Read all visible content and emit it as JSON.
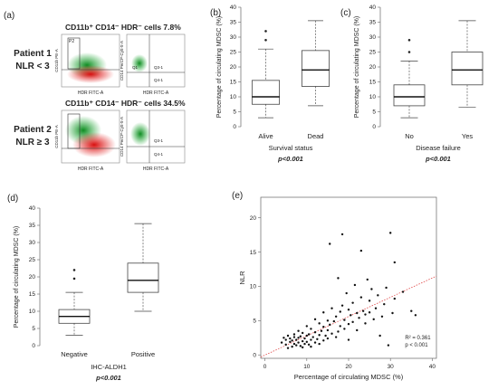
{
  "panel_labels": {
    "a": "(a)",
    "b": "(b)",
    "c": "(c)",
    "d": "(d)",
    "e": "(e)"
  },
  "flow_panel": {
    "patient1": {
      "line1": "Patient 1",
      "line2": "NLR < 3"
    },
    "patient2": {
      "line1": "Patient 2",
      "line2": "NLR ≥ 3"
    },
    "header1": "CD11b⁺ CD14⁻ HDR⁻ cells 7.8%",
    "header2": "CD11b⁺ CD14⁻ HDR⁻ cells 34.5%",
    "gate_p2": "P2",
    "gate_q1": "Q1",
    "gate_q3_1": "Q3-1",
    "gate_q4_1": "Q4-1",
    "x_label_left": "HDR FITC-A",
    "x_label_right": "HDR FITC-A",
    "y_label_left": "CD11b PE-A",
    "y_label_right": "CD14 PerCP-Cy5-5-A",
    "colors": {
      "green": "#19a82f",
      "red": "#e31b1b"
    }
  },
  "chart_data": [
    {
      "id": "b",
      "type": "box",
      "categories": [
        "Alive",
        "Dead"
      ],
      "boxes": [
        {
          "min": 3,
          "q1": 7.5,
          "median": 10,
          "q3": 15.5,
          "max": 26,
          "outliers": [
            29,
            32
          ]
        },
        {
          "min": 7,
          "q1": 13.5,
          "median": 19,
          "q3": 25.5,
          "max": 35.5,
          "outliers": []
        }
      ],
      "ylabel": "Percentage of circulating MDSC (%)",
      "xlabel": "Survival status",
      "pvalue": "p<0.001",
      "ylim": [
        0,
        40
      ],
      "yticks": [
        0,
        5,
        10,
        15,
        20,
        25,
        30,
        35,
        40
      ]
    },
    {
      "id": "c",
      "type": "box",
      "categories": [
        "No",
        "Yes"
      ],
      "boxes": [
        {
          "min": 3,
          "q1": 7,
          "median": 10,
          "q3": 14,
          "max": 22,
          "outliers": [
            25,
            29
          ]
        },
        {
          "min": 6.5,
          "q1": 14,
          "median": 19,
          "q3": 25,
          "max": 35.5,
          "outliers": []
        }
      ],
      "ylabel": "Percentage of circulating MDSC (%)",
      "xlabel": "Disease failure",
      "pvalue": "p<0.001",
      "ylim": [
        0,
        40
      ],
      "yticks": [
        0,
        5,
        10,
        15,
        20,
        25,
        30,
        35,
        40
      ]
    },
    {
      "id": "d",
      "type": "box",
      "categories": [
        "Negative",
        "Positive"
      ],
      "boxes": [
        {
          "min": 3,
          "q1": 6.5,
          "median": 8.5,
          "q3": 10.5,
          "max": 15.5,
          "outliers": [
            19.5,
            22
          ]
        },
        {
          "min": 10,
          "q1": 15.5,
          "median": 19,
          "q3": 24,
          "max": 35.5,
          "outliers": []
        }
      ],
      "ylabel": "Percentage of circulating MDSC (%)",
      "xlabel": "IHC-ALDH1",
      "pvalue": "p<0.001",
      "ylim": [
        0,
        40
      ],
      "yticks": [
        0,
        5,
        10,
        15,
        20,
        25,
        30,
        35,
        40
      ]
    },
    {
      "id": "e",
      "type": "scatter",
      "xlabel": "Percentage of circulating MDSC (%)",
      "ylabel": "NLR",
      "xlim": [
        -1,
        41
      ],
      "ylim": [
        -0.5,
        23
      ],
      "xticks": [
        0,
        10,
        20,
        30,
        40
      ],
      "yticks": [
        0,
        5,
        10,
        15,
        20
      ],
      "annotation_r2": "R² = 0.361",
      "annotation_p": "p < 0.001",
      "fit_line": [
        [
          -1,
          -0.3
        ],
        [
          41,
          11.5
        ]
      ],
      "grid": false,
      "points": [
        [
          4,
          1.8
        ],
        [
          4.5,
          2.5
        ],
        [
          5,
          1.5
        ],
        [
          5,
          2.2
        ],
        [
          5.5,
          1
        ],
        [
          5.5,
          2.8
        ],
        [
          6,
          1.9
        ],
        [
          6,
          2.4
        ],
        [
          6.5,
          1.2
        ],
        [
          6.5,
          2.1
        ],
        [
          7,
          1.6
        ],
        [
          7,
          2.6
        ],
        [
          7,
          3
        ],
        [
          7.5,
          1.4
        ],
        [
          7.5,
          2.2
        ],
        [
          8,
          1.8
        ],
        [
          8,
          2.5
        ],
        [
          8,
          3.5
        ],
        [
          8.5,
          1.3
        ],
        [
          8.5,
          2.7
        ],
        [
          9,
          2
        ],
        [
          9,
          1.1
        ],
        [
          9,
          3.2
        ],
        [
          9.5,
          2.4
        ],
        [
          9.5,
          1.6
        ],
        [
          10,
          1.9
        ],
        [
          10,
          2.8
        ],
        [
          10,
          4.2
        ],
        [
          10.5,
          1.5
        ],
        [
          10.5,
          3
        ],
        [
          11,
          2.2
        ],
        [
          11,
          3.8
        ],
        [
          11,
          1.2
        ],
        [
          11.5,
          2.6
        ],
        [
          12,
          1.8
        ],
        [
          12,
          3.3
        ],
        [
          12,
          5.2
        ],
        [
          12.5,
          2.3
        ],
        [
          13,
          2.9
        ],
        [
          13,
          1.6
        ],
        [
          13,
          4.6
        ],
        [
          13.5,
          3.5
        ],
        [
          14,
          2.1
        ],
        [
          14,
          4.1
        ],
        [
          14,
          6.2
        ],
        [
          14.5,
          2.8
        ],
        [
          15,
          3.6
        ],
        [
          15,
          5
        ],
        [
          15,
          2.4
        ],
        [
          15.5,
          16.2
        ],
        [
          15.5,
          4.4
        ],
        [
          16,
          3.1
        ],
        [
          16,
          6.8
        ],
        [
          16.5,
          4.9
        ],
        [
          17,
          2.6
        ],
        [
          17,
          5.6
        ],
        [
          17.5,
          11.2
        ],
        [
          17.5,
          3.4
        ],
        [
          18,
          4.2
        ],
        [
          18,
          6.3
        ],
        [
          18.5,
          17.6
        ],
        [
          18.5,
          7.2
        ],
        [
          19,
          3.8
        ],
        [
          19,
          5.1
        ],
        [
          19.5,
          9
        ],
        [
          20,
          4.5
        ],
        [
          20,
          6.6
        ],
        [
          20,
          2.2
        ],
        [
          20.5,
          5.8
        ],
        [
          21,
          7.6
        ],
        [
          21,
          4.8
        ],
        [
          21.5,
          10.2
        ],
        [
          22,
          6.1
        ],
        [
          22,
          3.6
        ],
        [
          22.5,
          5.4
        ],
        [
          23,
          8.4
        ],
        [
          23,
          15.2
        ],
        [
          23.5,
          6.4
        ],
        [
          24,
          4.6
        ],
        [
          24,
          5.9
        ],
        [
          24.5,
          11
        ],
        [
          25,
          6.2
        ],
        [
          25,
          7.9
        ],
        [
          25.5,
          9.6
        ],
        [
          26,
          5.2
        ],
        [
          26.5,
          6.8
        ],
        [
          27,
          8.7
        ],
        [
          27.5,
          2.8
        ],
        [
          28,
          5.6
        ],
        [
          28.5,
          7.4
        ],
        [
          29,
          9.8
        ],
        [
          29.5,
          1.4
        ],
        [
          30,
          17.8
        ],
        [
          30.5,
          6.1
        ],
        [
          31,
          13.5
        ],
        [
          31,
          8.2
        ],
        [
          33,
          9.2
        ],
        [
          35,
          6.4
        ],
        [
          36,
          5.8
        ]
      ]
    }
  ]
}
